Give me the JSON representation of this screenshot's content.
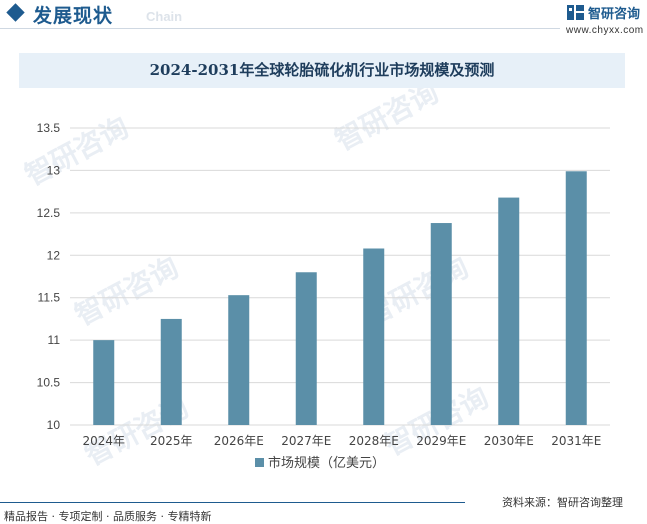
{
  "header": {
    "section_title": "发展现状",
    "section_sub": "Chain",
    "brand_name": "智研咨询",
    "brand_url": "www.chyxx.com"
  },
  "watermark": "智研咨询",
  "chart_data": {
    "type": "bar",
    "title": "2024-2031年全球轮胎硫化机行业市场规模及预测",
    "categories": [
      "2024年",
      "2025年",
      "2026年E",
      "2027年E",
      "2028年E",
      "2029年E",
      "2030年E",
      "2031年E"
    ],
    "series": [
      {
        "name": "市场规模（亿美元）",
        "values": [
          11.0,
          11.25,
          11.53,
          11.8,
          12.08,
          12.38,
          12.68,
          12.99
        ]
      }
    ],
    "ylim": [
      10,
      13.5
    ],
    "yticks": [
      "10",
      "10.5",
      "11",
      "11.5",
      "12",
      "12.5",
      "13",
      "13.5"
    ],
    "grid": true,
    "legend_position": "bottom",
    "colors": {
      "bar": "#5b8fa8",
      "grid": "#d9d9d9"
    }
  },
  "footer": {
    "left": "精品报告 · 专项定制 · 品质服务 · 专精特新",
    "source": "资料来源：智研咨询整理"
  }
}
